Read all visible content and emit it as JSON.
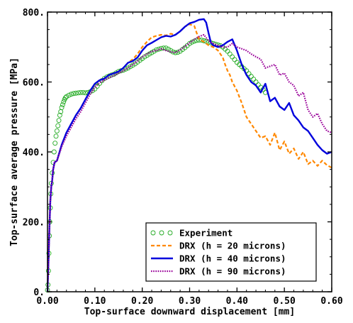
{
  "chart_data": {
    "type": "line",
    "xlabel": "Top-surface downward displacement [mm]",
    "ylabel": "Top-surface average pressure [MPa]",
    "xlim": [
      0,
      0.6
    ],
    "ylim": [
      0,
      800
    ],
    "x_ticks": [
      "0.00",
      "0.10",
      "0.20",
      "0.30",
      "0.40",
      "0.50",
      "0.60"
    ],
    "y_ticks": [
      "0",
      "200",
      "400",
      "600",
      "800"
    ],
    "x_tick_values": [
      0,
      0.1,
      0.2,
      0.3,
      0.4,
      0.5,
      0.6
    ],
    "y_tick_values": [
      0,
      200,
      400,
      600,
      800
    ],
    "legend_position": "bottom-right",
    "series": [
      {
        "name": "Experiment",
        "style": "circles",
        "color": "#22aa22",
        "points": [
          [
            0.0,
            5
          ],
          [
            0.001,
            20
          ],
          [
            0.002,
            60
          ],
          [
            0.003,
            110
          ],
          [
            0.004,
            160
          ],
          [
            0.005,
            200
          ],
          [
            0.006,
            240
          ],
          [
            0.007,
            280
          ],
          [
            0.008,
            310
          ],
          [
            0.01,
            340
          ],
          [
            0.012,
            370
          ],
          [
            0.014,
            400
          ],
          [
            0.016,
            425
          ],
          [
            0.018,
            445
          ],
          [
            0.02,
            460
          ],
          [
            0.022,
            475
          ],
          [
            0.024,
            490
          ],
          [
            0.026,
            505
          ],
          [
            0.028,
            515
          ],
          [
            0.03,
            527
          ],
          [
            0.032,
            535
          ],
          [
            0.034,
            543
          ],
          [
            0.036,
            550
          ],
          [
            0.038,
            555
          ],
          [
            0.04,
            558
          ],
          [
            0.045,
            562
          ],
          [
            0.05,
            565
          ],
          [
            0.055,
            567
          ],
          [
            0.06,
            568
          ],
          [
            0.065,
            569
          ],
          [
            0.07,
            570
          ],
          [
            0.075,
            570
          ],
          [
            0.08,
            569
          ],
          [
            0.085,
            570
          ],
          [
            0.09,
            572
          ],
          [
            0.095,
            575
          ],
          [
            0.1,
            580
          ],
          [
            0.105,
            588
          ],
          [
            0.11,
            596
          ],
          [
            0.115,
            604
          ],
          [
            0.12,
            610
          ],
          [
            0.125,
            614
          ],
          [
            0.13,
            617
          ],
          [
            0.135,
            620
          ],
          [
            0.14,
            622
          ],
          [
            0.145,
            626
          ],
          [
            0.15,
            630
          ],
          [
            0.155,
            632
          ],
          [
            0.16,
            634
          ],
          [
            0.165,
            637
          ],
          [
            0.17,
            640
          ],
          [
            0.175,
            644
          ],
          [
            0.18,
            648
          ],
          [
            0.185,
            652
          ],
          [
            0.19,
            657
          ],
          [
            0.195,
            662
          ],
          [
            0.2,
            667
          ],
          [
            0.205,
            672
          ],
          [
            0.21,
            676
          ],
          [
            0.215,
            680
          ],
          [
            0.22,
            684
          ],
          [
            0.225,
            688
          ],
          [
            0.23,
            692
          ],
          [
            0.235,
            694
          ],
          [
            0.24,
            696
          ],
          [
            0.245,
            697
          ],
          [
            0.25,
            697
          ],
          [
            0.255,
            694
          ],
          [
            0.26,
            690
          ],
          [
            0.265,
            686
          ],
          [
            0.27,
            684
          ],
          [
            0.275,
            685
          ],
          [
            0.28,
            688
          ],
          [
            0.285,
            693
          ],
          [
            0.29,
            698
          ],
          [
            0.295,
            704
          ],
          [
            0.3,
            710
          ],
          [
            0.305,
            714
          ],
          [
            0.31,
            717
          ],
          [
            0.315,
            719
          ],
          [
            0.32,
            720
          ],
          [
            0.325,
            720
          ],
          [
            0.33,
            718
          ],
          [
            0.335,
            716
          ],
          [
            0.34,
            714
          ],
          [
            0.345,
            712
          ],
          [
            0.35,
            710
          ],
          [
            0.355,
            708
          ],
          [
            0.36,
            706
          ],
          [
            0.365,
            704
          ],
          [
            0.37,
            700
          ],
          [
            0.375,
            694
          ],
          [
            0.38,
            688
          ],
          [
            0.385,
            680
          ],
          [
            0.39,
            672
          ],
          [
            0.395,
            664
          ],
          [
            0.4,
            656
          ],
          [
            0.405,
            650
          ],
          [
            0.41,
            644
          ],
          [
            0.415,
            638
          ],
          [
            0.42,
            632
          ],
          [
            0.425,
            624
          ],
          [
            0.43,
            616
          ],
          [
            0.435,
            608
          ],
          [
            0.44,
            600
          ],
          [
            0.445,
            592
          ],
          [
            0.45,
            585
          ],
          [
            0.455,
            578
          ],
          [
            0.46,
            570
          ]
        ]
      },
      {
        "name": "DRX (h = 20 microns)",
        "style": "dashed",
        "color": "#ff8800",
        "points": [
          [
            0,
            0
          ],
          [
            0.002,
            80
          ],
          [
            0.004,
            180
          ],
          [
            0.006,
            260
          ],
          [
            0.008,
            300
          ],
          [
            0.01,
            320
          ],
          [
            0.012,
            350
          ],
          [
            0.015,
            370
          ],
          [
            0.02,
            375
          ],
          [
            0.03,
            420
          ],
          [
            0.04,
            455
          ],
          [
            0.05,
            480
          ],
          [
            0.06,
            505
          ],
          [
            0.07,
            525
          ],
          [
            0.08,
            550
          ],
          [
            0.09,
            575
          ],
          [
            0.1,
            595
          ],
          [
            0.11,
            605
          ],
          [
            0.12,
            610
          ],
          [
            0.13,
            620
          ],
          [
            0.14,
            625
          ],
          [
            0.15,
            630
          ],
          [
            0.16,
            640
          ],
          [
            0.17,
            655
          ],
          [
            0.18,
            665
          ],
          [
            0.19,
            680
          ],
          [
            0.2,
            700
          ],
          [
            0.21,
            715
          ],
          [
            0.22,
            728
          ],
          [
            0.23,
            732
          ],
          [
            0.24,
            735
          ],
          [
            0.25,
            733
          ],
          [
            0.26,
            738
          ],
          [
            0.27,
            735
          ],
          [
            0.28,
            745
          ],
          [
            0.29,
            758
          ],
          [
            0.3,
            765
          ],
          [
            0.31,
            760
          ],
          [
            0.315,
            740
          ],
          [
            0.32,
            722
          ],
          [
            0.33,
            715
          ],
          [
            0.34,
            705
          ],
          [
            0.35,
            700
          ],
          [
            0.36,
            690
          ],
          [
            0.37,
            670
          ],
          [
            0.375,
            650
          ],
          [
            0.38,
            632
          ],
          [
            0.385,
            620
          ],
          [
            0.39,
            600
          ],
          [
            0.4,
            575
          ],
          [
            0.41,
            540
          ],
          [
            0.42,
            500
          ],
          [
            0.43,
            480
          ],
          [
            0.44,
            460
          ],
          [
            0.45,
            440
          ],
          [
            0.46,
            445
          ],
          [
            0.47,
            420
          ],
          [
            0.48,
            455
          ],
          [
            0.49,
            405
          ],
          [
            0.5,
            430
          ],
          [
            0.51,
            395
          ],
          [
            0.52,
            410
          ],
          [
            0.53,
            380
          ],
          [
            0.54,
            400
          ],
          [
            0.55,
            365
          ],
          [
            0.56,
            375
          ],
          [
            0.57,
            360
          ],
          [
            0.58,
            375
          ],
          [
            0.59,
            362
          ],
          [
            0.6,
            355
          ]
        ]
      },
      {
        "name": "DRX (h = 40 microns)",
        "style": "solid",
        "color": "#0000dd",
        "points": [
          [
            0,
            0
          ],
          [
            0.002,
            80
          ],
          [
            0.004,
            180
          ],
          [
            0.006,
            260
          ],
          [
            0.008,
            300
          ],
          [
            0.01,
            320
          ],
          [
            0.012,
            350
          ],
          [
            0.015,
            370
          ],
          [
            0.02,
            375
          ],
          [
            0.03,
            420
          ],
          [
            0.04,
            455
          ],
          [
            0.05,
            480
          ],
          [
            0.06,
            505
          ],
          [
            0.07,
            525
          ],
          [
            0.08,
            550
          ],
          [
            0.09,
            575
          ],
          [
            0.1,
            595
          ],
          [
            0.11,
            605
          ],
          [
            0.12,
            610
          ],
          [
            0.13,
            620
          ],
          [
            0.14,
            625
          ],
          [
            0.15,
            630
          ],
          [
            0.16,
            640
          ],
          [
            0.17,
            655
          ],
          [
            0.18,
            660
          ],
          [
            0.19,
            670
          ],
          [
            0.2,
            690
          ],
          [
            0.21,
            705
          ],
          [
            0.22,
            712
          ],
          [
            0.23,
            720
          ],
          [
            0.24,
            728
          ],
          [
            0.25,
            732
          ],
          [
            0.26,
            730
          ],
          [
            0.27,
            735
          ],
          [
            0.28,
            745
          ],
          [
            0.29,
            758
          ],
          [
            0.3,
            768
          ],
          [
            0.31,
            772
          ],
          [
            0.32,
            778
          ],
          [
            0.33,
            780
          ],
          [
            0.335,
            770
          ],
          [
            0.34,
            740
          ],
          [
            0.345,
            712
          ],
          [
            0.35,
            705
          ],
          [
            0.36,
            700
          ],
          [
            0.37,
            705
          ],
          [
            0.38,
            715
          ],
          [
            0.39,
            722
          ],
          [
            0.4,
            690
          ],
          [
            0.41,
            650
          ],
          [
            0.42,
            620
          ],
          [
            0.43,
            600
          ],
          [
            0.44,
            590
          ],
          [
            0.45,
            570
          ],
          [
            0.46,
            595
          ],
          [
            0.47,
            545
          ],
          [
            0.48,
            555
          ],
          [
            0.49,
            530
          ],
          [
            0.5,
            520
          ],
          [
            0.51,
            540
          ],
          [
            0.52,
            505
          ],
          [
            0.53,
            490
          ],
          [
            0.54,
            470
          ],
          [
            0.55,
            460
          ],
          [
            0.56,
            440
          ],
          [
            0.57,
            420
          ],
          [
            0.58,
            405
          ],
          [
            0.59,
            395
          ],
          [
            0.6,
            400
          ]
        ]
      },
      {
        "name": "DRX (h = 90 microns)",
        "style": "dotted",
        "color": "#990099",
        "points": [
          [
            0,
            0
          ],
          [
            0.002,
            80
          ],
          [
            0.004,
            180
          ],
          [
            0.006,
            260
          ],
          [
            0.008,
            300
          ],
          [
            0.01,
            320
          ],
          [
            0.012,
            350
          ],
          [
            0.015,
            370
          ],
          [
            0.02,
            375
          ],
          [
            0.03,
            415
          ],
          [
            0.04,
            445
          ],
          [
            0.05,
            470
          ],
          [
            0.06,
            495
          ],
          [
            0.07,
            515
          ],
          [
            0.08,
            540
          ],
          [
            0.09,
            565
          ],
          [
            0.1,
            585
          ],
          [
            0.11,
            598
          ],
          [
            0.12,
            605
          ],
          [
            0.13,
            612
          ],
          [
            0.14,
            618
          ],
          [
            0.15,
            625
          ],
          [
            0.16,
            632
          ],
          [
            0.17,
            640
          ],
          [
            0.18,
            650
          ],
          [
            0.19,
            660
          ],
          [
            0.2,
            672
          ],
          [
            0.21,
            680
          ],
          [
            0.22,
            688
          ],
          [
            0.23,
            690
          ],
          [
            0.24,
            695
          ],
          [
            0.25,
            690
          ],
          [
            0.26,
            686
          ],
          [
            0.27,
            684
          ],
          [
            0.28,
            692
          ],
          [
            0.29,
            702
          ],
          [
            0.3,
            712
          ],
          [
            0.31,
            722
          ],
          [
            0.32,
            730
          ],
          [
            0.33,
            735
          ],
          [
            0.34,
            718
          ],
          [
            0.35,
            710
          ],
          [
            0.36,
            704
          ],
          [
            0.37,
            700
          ],
          [
            0.38,
            700
          ],
          [
            0.39,
            710
          ],
          [
            0.4,
            700
          ],
          [
            0.41,
            695
          ],
          [
            0.42,
            690
          ],
          [
            0.43,
            680
          ],
          [
            0.44,
            672
          ],
          [
            0.45,
            665
          ],
          [
            0.46,
            640
          ],
          [
            0.47,
            645
          ],
          [
            0.48,
            650
          ],
          [
            0.49,
            620
          ],
          [
            0.5,
            625
          ],
          [
            0.51,
            600
          ],
          [
            0.52,
            590
          ],
          [
            0.53,
            560
          ],
          [
            0.54,
            570
          ],
          [
            0.55,
            520
          ],
          [
            0.56,
            500
          ],
          [
            0.57,
            510
          ],
          [
            0.58,
            480
          ],
          [
            0.59,
            460
          ],
          [
            0.6,
            455
          ]
        ]
      }
    ]
  }
}
